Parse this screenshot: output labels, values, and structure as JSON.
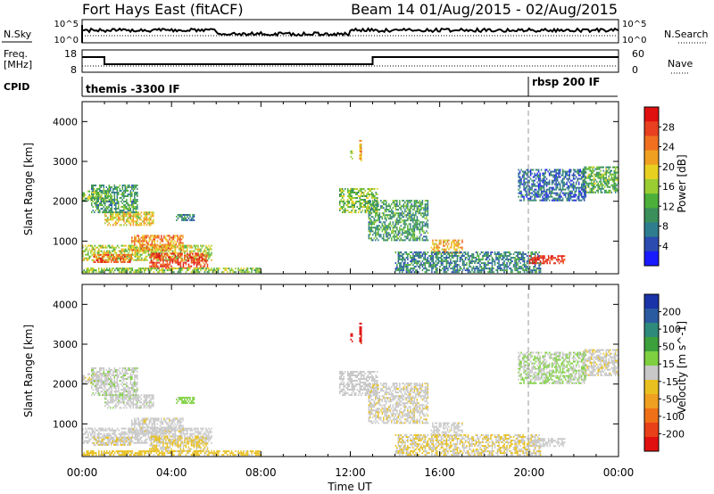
{
  "header": {
    "station": "Fort Hays East (fitACF)",
    "beam_date": "Beam 14 01/Aug/2015 - 02/Aug/2015"
  },
  "nsky_panel": {
    "left_label": "N.Sky",
    "right_label": "N.Search",
    "left_ticks": [
      "10^5",
      "10^0"
    ],
    "right_ticks": [
      "10^5",
      "10^0"
    ]
  },
  "freq_panel": {
    "left_label_1": "Freq.",
    "left_label_2": "[MHz]",
    "right_label": "Nave",
    "left_ticks": [
      "18",
      "8"
    ],
    "right_ticks": [
      "60",
      "0"
    ]
  },
  "cpid": {
    "label": "CPID",
    "events": [
      {
        "time_h": 0.0,
        "text": "themis -3300 IF"
      },
      {
        "time_h": 20.0,
        "text": "rbsp 200 IF"
      }
    ]
  },
  "axes": {
    "xlabel": "Time UT",
    "ylabel": "Slant Range [km]",
    "x_ticks": [
      "00:00",
      "04:00",
      "08:00",
      "12:00",
      "16:00",
      "20:00",
      "00:00"
    ],
    "y_ticks": [
      "1000",
      "2000",
      "3000",
      "4000"
    ],
    "dashed_line_time": "20:00"
  },
  "power_colorbar": {
    "label": "Power [dB]",
    "ticks": [
      "4",
      "8",
      "12",
      "16",
      "20",
      "24",
      "28"
    ],
    "colors": [
      "#1a1aff",
      "#2b4bb0",
      "#2e7d8e",
      "#3a8f5a",
      "#4caf3a",
      "#9acd32",
      "#e8d020",
      "#f0a020",
      "#f07020",
      "#e84020",
      "#e01010"
    ]
  },
  "velocity_colorbar": {
    "label": "Velocity [m s^-1]",
    "ticks": [
      "200",
      "100",
      "50",
      "15",
      "-15",
      "-50",
      "-100",
      "-200"
    ],
    "colors": [
      "#1a33a8",
      "#2a5aa0",
      "#2e8a7a",
      "#3ca03c",
      "#7ed040",
      "#c8c8c8",
      "#e8c020",
      "#f0a020",
      "#f07018",
      "#e84018",
      "#e01010"
    ]
  },
  "chart_data": {
    "type": "heatmap",
    "x_range_hours": [
      0,
      24
    ],
    "y_range_km": [
      180,
      4500
    ],
    "power_range_db": [
      0,
      30
    ],
    "velocity_range": [
      -250,
      250
    ],
    "echo_regions": [
      {
        "t0": 0.0,
        "t1": 1.2,
        "r0": 2000,
        "r1": 2250,
        "power": 14,
        "velocity": -10
      },
      {
        "t0": 0.0,
        "t1": 5.8,
        "r0": 500,
        "r1": 900,
        "power": 16,
        "velocity": 0
      },
      {
        "t0": 0.5,
        "t1": 2.2,
        "r0": 450,
        "r1": 650,
        "power": 24,
        "velocity": -20
      },
      {
        "t0": 2.2,
        "t1": 4.5,
        "r0": 750,
        "r1": 1150,
        "power": 22,
        "velocity": -5
      },
      {
        "t0": 3.0,
        "t1": 5.6,
        "r0": 300,
        "r1": 700,
        "power": 26,
        "velocity": -30
      },
      {
        "t0": 1.0,
        "t1": 3.2,
        "r0": 1380,
        "r1": 1700,
        "power": 18,
        "velocity": 5
      },
      {
        "t0": 0.0,
        "t1": 8.0,
        "r0": 200,
        "r1": 330,
        "power": 14,
        "velocity": -40
      },
      {
        "t0": 0.4,
        "t1": 2.5,
        "r0": 1700,
        "r1": 2400,
        "power": 10,
        "velocity": 10
      },
      {
        "t0": 4.2,
        "t1": 5.0,
        "r0": 1500,
        "r1": 1650,
        "power": 8,
        "velocity": 40
      },
      {
        "t0": 11.5,
        "t1": 13.2,
        "r0": 1700,
        "r1": 2300,
        "power": 14,
        "velocity": 0
      },
      {
        "t0": 12.8,
        "t1": 15.5,
        "r0": 1000,
        "r1": 2000,
        "power": 10,
        "velocity": -10
      },
      {
        "t0": 15.6,
        "t1": 17.0,
        "r0": 680,
        "r1": 1000,
        "power": 20,
        "velocity": -5
      },
      {
        "t0": 14.0,
        "t1": 20.5,
        "r0": 200,
        "r1": 700,
        "power": 8,
        "velocity": -20
      },
      {
        "t0": 20.0,
        "t1": 21.6,
        "r0": 420,
        "r1": 640,
        "power": 28,
        "velocity": 0
      },
      {
        "t0": 22.4,
        "t1": 24.0,
        "r0": 2200,
        "r1": 2850,
        "power": 12,
        "velocity": -10
      },
      {
        "t0": 19.5,
        "t1": 22.5,
        "r0": 2000,
        "r1": 2800,
        "power": 6,
        "velocity": 20
      },
      {
        "t0": 12.4,
        "t1": 12.5,
        "r0": 3000,
        "r1": 3500,
        "power": 20,
        "velocity": -220
      },
      {
        "t0": 12.0,
        "t1": 12.1,
        "r0": 3050,
        "r1": 3250,
        "power": 16,
        "velocity": -220
      }
    ]
  }
}
